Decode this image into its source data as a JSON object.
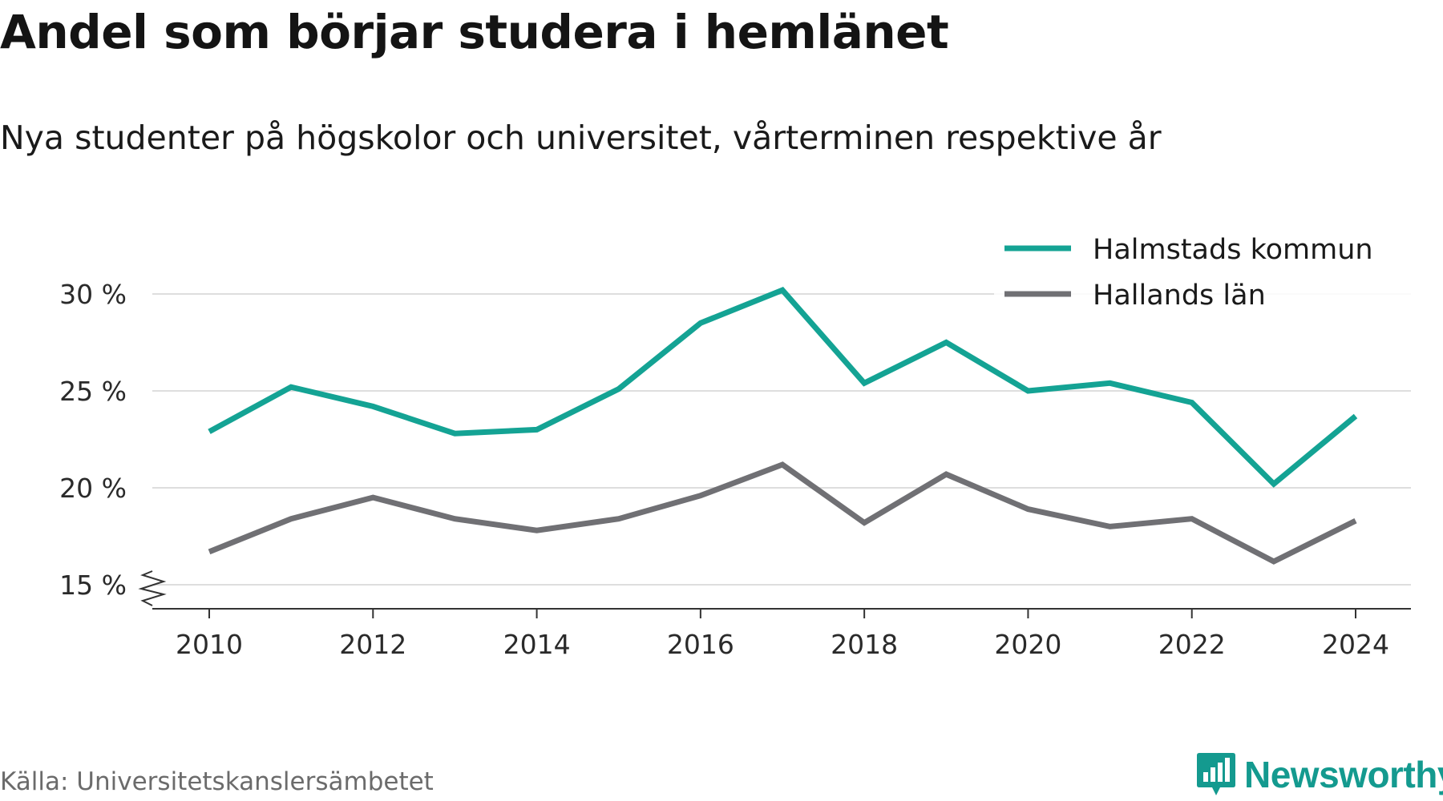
{
  "title": "Andel som börjar studera i hemlänet",
  "subtitle": "Nya studenter på högskolor och universitet, vårterminen respektive år",
  "source": "Källa: Universitetskanslersämbetet",
  "brand": {
    "name": "Newsworthy",
    "logo_icon": "newsworthy-bar-chart-icon",
    "color": "#149a8f"
  },
  "chart_data": {
    "type": "line",
    "x": [
      2010,
      2011,
      2012,
      2013,
      2014,
      2015,
      2016,
      2017,
      2018,
      2019,
      2020,
      2021,
      2022,
      2023,
      2024
    ],
    "x_ticks": [
      2010,
      2012,
      2014,
      2016,
      2018,
      2020,
      2022,
      2024
    ],
    "x_tick_labels": [
      "2010",
      "2012",
      "2014",
      "2016",
      "2018",
      "2020",
      "2022",
      "2024"
    ],
    "y_ticks": [
      15,
      20,
      25,
      30
    ],
    "y_tick_labels": [
      "15 %",
      "20 %",
      "25 %",
      "30 %"
    ],
    "ylim": [
      15,
      30
    ],
    "y_axis_break": true,
    "grid": "horizontal",
    "legend_position": "top-right",
    "series": [
      {
        "name": "Halmstads kommun",
        "color": "#14a394",
        "values": [
          22.9,
          25.2,
          24.2,
          22.8,
          23.0,
          25.1,
          28.5,
          30.2,
          25.4,
          27.5,
          25.0,
          25.4,
          24.4,
          20.2,
          23.7
        ]
      },
      {
        "name": "Hallands län",
        "color": "#707074",
        "values": [
          16.7,
          18.4,
          19.5,
          18.4,
          17.8,
          18.4,
          19.6,
          21.2,
          18.2,
          20.7,
          18.9,
          18.0,
          18.4,
          16.2,
          18.3
        ]
      }
    ]
  }
}
